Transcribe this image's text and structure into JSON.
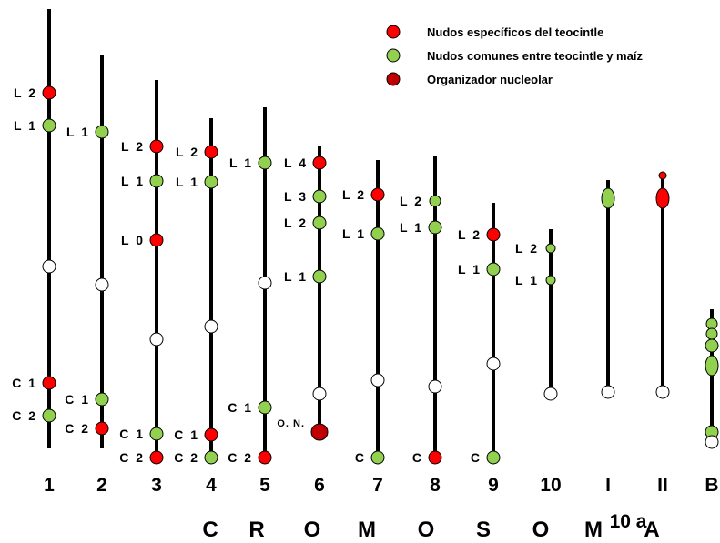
{
  "legend": {
    "specific": "Nudos específicos del teocintle",
    "common": "Nudos comunes entre teocintle y maíz",
    "organizer": "Organizador nucleolar"
  },
  "colors": {
    "specific": "#ff0000",
    "common": "#92d050",
    "organizer": "#c00000",
    "centromere": "#ffffff",
    "line": "#000000"
  },
  "axis_title": [
    "C",
    "R",
    "O",
    "M",
    "O",
    "S",
    "O",
    "M",
    "A"
  ],
  "subtitle": "10 a",
  "chromosomes": [
    {
      "id": "1",
      "label": "1",
      "knobs": [
        {
          "label": "L 2",
          "type": "specific"
        },
        {
          "label": "L 1",
          "type": "common"
        },
        {
          "label": "",
          "type": "centromere"
        },
        {
          "label": "C 1",
          "type": "specific"
        },
        {
          "label": "C 2",
          "type": "common"
        }
      ]
    },
    {
      "id": "2",
      "label": "2",
      "knobs": [
        {
          "label": "L 1",
          "type": "common"
        },
        {
          "label": "",
          "type": "centromere"
        },
        {
          "label": "C 1",
          "type": "common"
        },
        {
          "label": "C 2",
          "type": "specific"
        }
      ]
    },
    {
      "id": "3",
      "label": "3",
      "knobs": [
        {
          "label": "L 2",
          "type": "specific"
        },
        {
          "label": "L 1",
          "type": "common"
        },
        {
          "label": "L 0",
          "type": "specific"
        },
        {
          "label": "",
          "type": "centromere"
        },
        {
          "label": "C 1",
          "type": "common"
        },
        {
          "label": "C 2",
          "type": "specific"
        }
      ]
    },
    {
      "id": "4",
      "label": "4",
      "knobs": [
        {
          "label": "L 2",
          "type": "specific"
        },
        {
          "label": "L 1",
          "type": "common"
        },
        {
          "label": "",
          "type": "centromere"
        },
        {
          "label": "C 1",
          "type": "specific"
        },
        {
          "label": "C 2",
          "type": "common"
        }
      ]
    },
    {
      "id": "5",
      "label": "5",
      "knobs": [
        {
          "label": "L 1",
          "type": "common"
        },
        {
          "label": "",
          "type": "centromere"
        },
        {
          "label": "C 1",
          "type": "common"
        },
        {
          "label": "C 2",
          "type": "specific"
        }
      ]
    },
    {
      "id": "6",
      "label": "6",
      "knobs": [
        {
          "label": "L 4",
          "type": "specific"
        },
        {
          "label": "L 3",
          "type": "common"
        },
        {
          "label": "L 2",
          "type": "common"
        },
        {
          "label": "L 1",
          "type": "common"
        },
        {
          "label": "",
          "type": "centromere"
        },
        {
          "label": "O. N.",
          "type": "organizer"
        }
      ]
    },
    {
      "id": "7",
      "label": "7",
      "knobs": [
        {
          "label": "L 2",
          "type": "specific"
        },
        {
          "label": "L 1",
          "type": "common"
        },
        {
          "label": "",
          "type": "centromere"
        },
        {
          "label": "C",
          "type": "common"
        }
      ]
    },
    {
      "id": "8",
      "label": "8",
      "knobs": [
        {
          "label": "L 2",
          "type": "common"
        },
        {
          "label": "L 1",
          "type": "common"
        },
        {
          "label": "",
          "type": "centromere"
        },
        {
          "label": "C",
          "type": "specific"
        }
      ]
    },
    {
      "id": "9",
      "label": "9",
      "knobs": [
        {
          "label": "L 2",
          "type": "specific"
        },
        {
          "label": "L 1",
          "type": "common"
        },
        {
          "label": "",
          "type": "centromere"
        },
        {
          "label": "C",
          "type": "common"
        }
      ]
    },
    {
      "id": "10",
      "label": "10",
      "knobs": [
        {
          "label": "L 2",
          "type": "common"
        },
        {
          "label": "L 1",
          "type": "common"
        },
        {
          "label": "",
          "type": "centromere"
        }
      ]
    },
    {
      "id": "I",
      "label": "I",
      "knobs": [
        {
          "label": "",
          "type": "common"
        },
        {
          "label": "",
          "type": "centromere"
        }
      ]
    },
    {
      "id": "II",
      "label": "II",
      "knobs": [
        {
          "label": "",
          "type": "specific"
        },
        {
          "label": "",
          "type": "specific"
        },
        {
          "label": "",
          "type": "centromere"
        }
      ]
    },
    {
      "id": "B",
      "label": "B",
      "knobs": [
        {
          "label": "",
          "type": "common"
        },
        {
          "label": "",
          "type": "common"
        },
        {
          "label": "",
          "type": "common"
        },
        {
          "label": "",
          "type": "common"
        },
        {
          "label": "",
          "type": "common"
        },
        {
          "label": "",
          "type": "centromere"
        }
      ]
    }
  ]
}
